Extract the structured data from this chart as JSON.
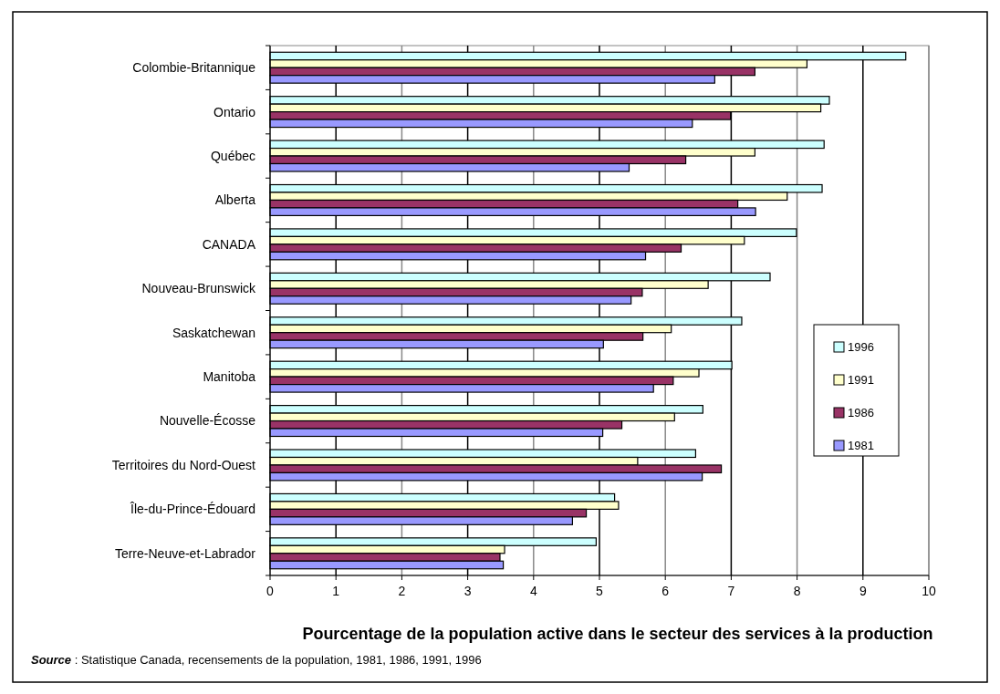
{
  "chart_data": {
    "type": "bar",
    "orientation": "horizontal",
    "xlabel": "Pourcentage de la population active dans le secteur des services à la production",
    "annotations": [
      "Source : Statistique Canada, recensements de la population, 1981, 1986, 1991, 1996"
    ],
    "categories": [
      "Colombie-Britannique",
      "Ontario",
      "Québec",
      "Alberta",
      "CANADA",
      "Nouveau-Brunswick",
      "Saskatchewan",
      "Manitoba",
      "Nouvelle-Écosse",
      "Territoires du Nord-Ouest",
      "Île-du-Prince-Édouard",
      "Terre-Neuve-et-Labrador"
    ],
    "series": [
      {
        "name": "1996",
        "color": "#ccffff",
        "values": [
          9.65,
          8.49,
          8.41,
          8.38,
          7.99,
          7.59,
          7.16,
          7.01,
          6.57,
          6.46,
          5.23,
          4.95
        ]
      },
      {
        "name": "1991",
        "color": "#ffffcc",
        "values": [
          8.15,
          8.36,
          7.36,
          7.85,
          7.2,
          6.65,
          6.09,
          6.51,
          6.14,
          5.58,
          5.29,
          3.56
        ]
      },
      {
        "name": "1986",
        "color": "#993366",
        "values": [
          7.36,
          6.99,
          6.31,
          7.1,
          6.24,
          5.65,
          5.66,
          6.12,
          5.34,
          6.85,
          4.8,
          3.49
        ]
      },
      {
        "name": "1981",
        "color": "#9999ff",
        "values": [
          6.75,
          6.41,
          5.45,
          7.37,
          5.7,
          5.48,
          5.06,
          5.82,
          5.05,
          6.56,
          4.59,
          3.54
        ]
      }
    ],
    "xlim": [
      0,
      10
    ],
    "xticks": [
      0,
      1,
      2,
      3,
      4,
      5,
      6,
      7,
      8,
      9,
      10
    ],
    "grid": "x",
    "legend": "right"
  }
}
